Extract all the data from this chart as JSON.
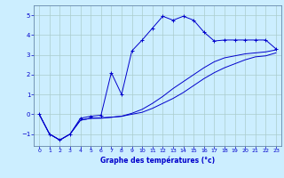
{
  "xlabel": "Graphe des températures (°c)",
  "background_color": "#cceeff",
  "line_color": "#0000cc",
  "grid_color": "#aacccc",
  "xlim": [
    -0.5,
    23.5
  ],
  "ylim": [
    -1.6,
    5.5
  ],
  "xticks": [
    0,
    1,
    2,
    3,
    4,
    5,
    6,
    7,
    8,
    9,
    10,
    11,
    12,
    13,
    14,
    15,
    16,
    17,
    18,
    19,
    20,
    21,
    22,
    23
  ],
  "yticks": [
    -1,
    0,
    1,
    2,
    3,
    4,
    5
  ],
  "curve1_x": [
    0,
    1,
    2,
    3,
    4,
    5,
    6,
    7,
    8,
    9,
    10,
    11,
    12,
    13,
    14,
    15,
    16,
    17,
    18,
    19,
    20,
    21,
    22,
    23
  ],
  "curve1_y": [
    0.0,
    -1.0,
    -1.3,
    -1.0,
    -0.2,
    -0.1,
    -0.05,
    2.1,
    1.0,
    3.2,
    3.75,
    4.35,
    4.95,
    4.75,
    4.95,
    4.75,
    4.15,
    3.7,
    3.75,
    3.75,
    3.75,
    3.75,
    3.75,
    3.3
  ],
  "curve2_x": [
    0,
    1,
    2,
    3,
    4,
    5,
    6,
    7,
    8,
    9,
    10,
    11,
    12,
    13,
    14,
    15,
    16,
    17,
    18,
    19,
    20,
    21,
    22,
    23
  ],
  "curve2_y": [
    0.0,
    -1.0,
    -1.3,
    -1.0,
    -0.3,
    -0.2,
    -0.2,
    -0.15,
    -0.1,
    0.05,
    0.25,
    0.55,
    0.9,
    1.3,
    1.65,
    2.0,
    2.35,
    2.65,
    2.85,
    2.95,
    3.05,
    3.1,
    3.15,
    3.25
  ],
  "curve3_x": [
    0,
    1,
    2,
    3,
    4,
    5,
    6,
    7,
    8,
    9,
    10,
    11,
    12,
    13,
    14,
    15,
    16,
    17,
    18,
    19,
    20,
    21,
    22,
    23
  ],
  "curve3_y": [
    0.0,
    -1.0,
    -1.3,
    -1.0,
    -0.3,
    -0.2,
    -0.18,
    -0.15,
    -0.1,
    0.0,
    0.1,
    0.3,
    0.55,
    0.8,
    1.1,
    1.45,
    1.8,
    2.1,
    2.35,
    2.55,
    2.75,
    2.9,
    2.95,
    3.1
  ]
}
